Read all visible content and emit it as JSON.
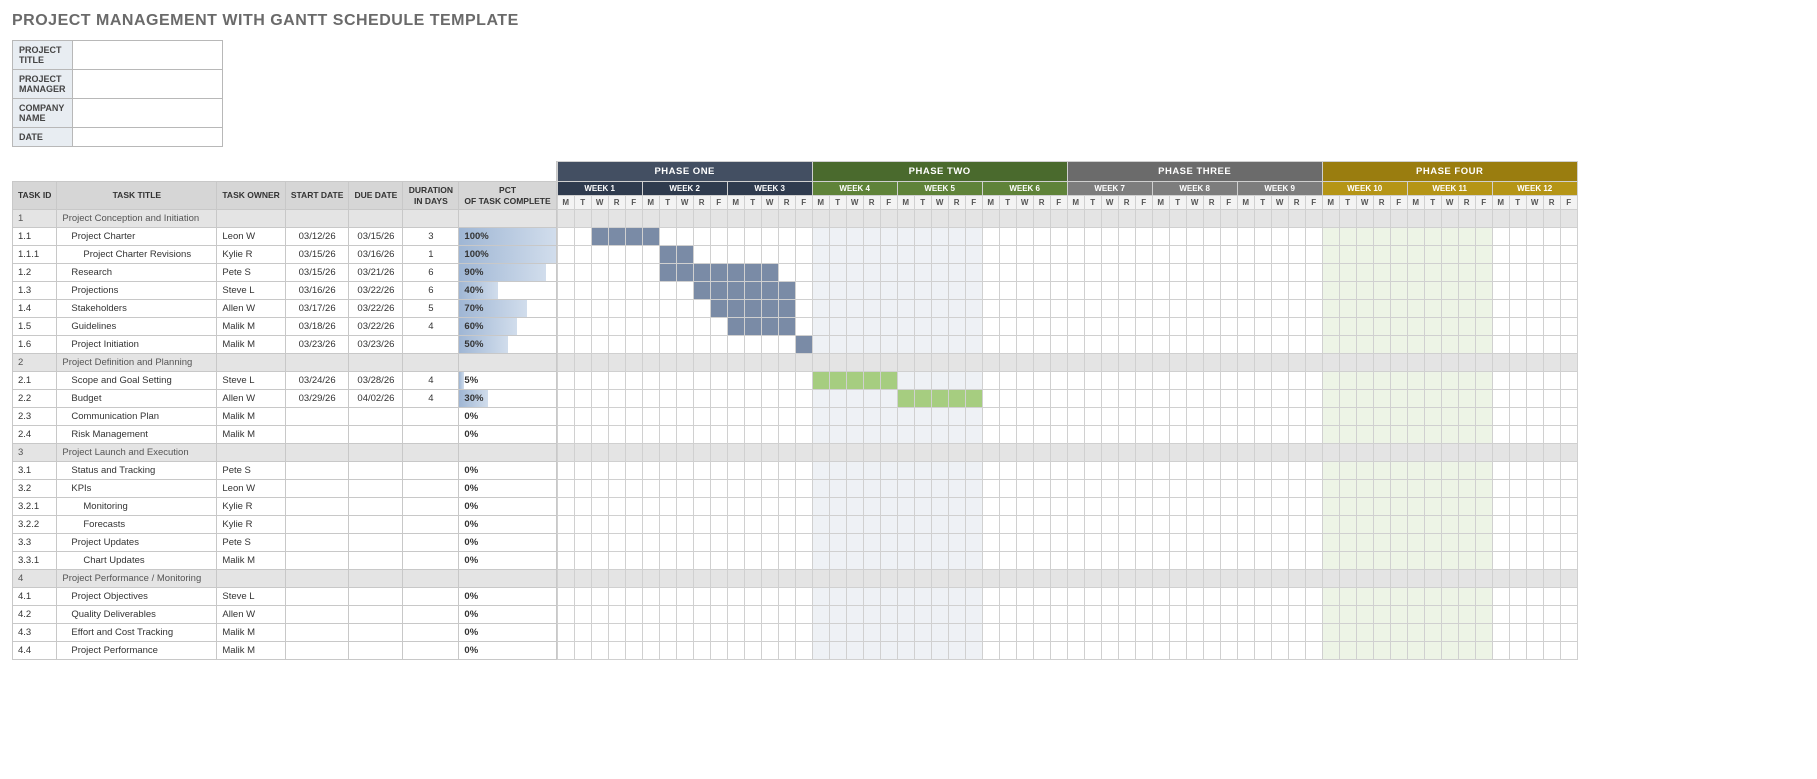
{
  "page_title": "PROJECT MANAGEMENT WITH GANTT SCHEDULE TEMPLATE",
  "meta": {
    "labels": {
      "title": "PROJECT TITLE",
      "manager": "PROJECT MANAGER",
      "company": "COMPANY NAME",
      "date": "DATE"
    },
    "values": {
      "title": "",
      "manager": "",
      "company": "",
      "date": ""
    }
  },
  "columns": {
    "id": "TASK ID",
    "title": "TASK TITLE",
    "owner": "TASK OWNER",
    "start": "START DATE",
    "due": "DUE DATE",
    "dur": "DURATION IN DAYS",
    "pct": "PCT OF TASK COMPLETE"
  },
  "day_letters": [
    "M",
    "T",
    "W",
    "R",
    "F"
  ],
  "phases": [
    {
      "name": "PHASE ONE",
      "bg": "#434f62",
      "wbg": "#2f3b4e",
      "weeks": [
        "WEEK 1",
        "WEEK 2",
        "WEEK 3"
      ]
    },
    {
      "name": "PHASE TWO",
      "bg": "#4a6a2d",
      "wbg": "#5f8339",
      "weeks": [
        "WEEK 4",
        "WEEK 5",
        "WEEK 6"
      ]
    },
    {
      "name": "PHASE THREE",
      "bg": "#6b6b6b",
      "wbg": "#7d7d7d",
      "weeks": [
        "WEEK 7",
        "WEEK 8",
        "WEEK 9"
      ]
    },
    {
      "name": "PHASE FOUR",
      "bg": "#9a7d0f",
      "wbg": "#b59516",
      "weeks": [
        "WEEK 10",
        "WEEK 11",
        "WEEK 12"
      ]
    }
  ],
  "shade_weeks": {
    "3": "shade-p1",
    "4": "shade-p1",
    "9": "shade-p2",
    "10": "shade-p2",
    "21": "shade-p4",
    "22": "shade-p4"
  },
  "tasks": [
    {
      "id": "1",
      "title": "Project Conception and Initiation",
      "group": true
    },
    {
      "id": "1.1",
      "title": "Project Charter",
      "indent": 1,
      "owner": "Leon W",
      "start": "03/12/26",
      "due": "03/15/26",
      "dur": "3",
      "pct": 100,
      "bar_start": 2,
      "bar_len": 4,
      "bar_color": "bar1"
    },
    {
      "id": "1.1.1",
      "title": "Project Charter Revisions",
      "indent": 2,
      "owner": "Kylie R",
      "start": "03/15/26",
      "due": "03/16/26",
      "dur": "1",
      "pct": 100,
      "bar_start": 6,
      "bar_len": 2,
      "bar_color": "bar1"
    },
    {
      "id": "1.2",
      "title": "Research",
      "indent": 1,
      "owner": "Pete S",
      "start": "03/15/26",
      "due": "03/21/26",
      "dur": "6",
      "pct": 90,
      "bar_start": 6,
      "bar_len": 7,
      "bar_color": "bar1"
    },
    {
      "id": "1.3",
      "title": "Projections",
      "indent": 1,
      "owner": "Steve L",
      "start": "03/16/26",
      "due": "03/22/26",
      "dur": "6",
      "pct": 40,
      "bar_start": 8,
      "bar_len": 6,
      "bar_color": "bar1"
    },
    {
      "id": "1.4",
      "title": "Stakeholders",
      "indent": 1,
      "owner": "Allen W",
      "start": "03/17/26",
      "due": "03/22/26",
      "dur": "5",
      "pct": 70,
      "bar_start": 9,
      "bar_len": 5,
      "bar_color": "bar1"
    },
    {
      "id": "1.5",
      "title": "Guidelines",
      "indent": 1,
      "owner": "Malik M",
      "start": "03/18/26",
      "due": "03/22/26",
      "dur": "4",
      "pct": 60,
      "bar_start": 10,
      "bar_len": 4,
      "bar_color": "bar1"
    },
    {
      "id": "1.6",
      "title": "Project Initiation",
      "indent": 1,
      "owner": "Malik M",
      "start": "03/23/26",
      "due": "03/23/26",
      "dur": "",
      "pct": 50,
      "bar_start": 14,
      "bar_len": 1,
      "bar_color": "bar1"
    },
    {
      "id": "2",
      "title": "Project Definition and Planning",
      "group": true
    },
    {
      "id": "2.1",
      "title": "Scope and Goal Setting",
      "indent": 1,
      "owner": "Steve L",
      "start": "03/24/26",
      "due": "03/28/26",
      "dur": "4",
      "pct": 5,
      "bar_start": 15,
      "bar_len": 5,
      "bar_color": "bar2"
    },
    {
      "id": "2.2",
      "title": "Budget",
      "indent": 1,
      "owner": "Allen W",
      "start": "03/29/26",
      "due": "04/02/26",
      "dur": "4",
      "pct": 30,
      "bar_start": 20,
      "bar_len": 5,
      "bar_color": "bar2"
    },
    {
      "id": "2.3",
      "title": "Communication Plan",
      "indent": 1,
      "owner": "Malik M",
      "start": "",
      "due": "",
      "dur": "",
      "pct": 0
    },
    {
      "id": "2.4",
      "title": "Risk Management",
      "indent": 1,
      "owner": "Malik M",
      "start": "",
      "due": "",
      "dur": "",
      "pct": 0
    },
    {
      "id": "3",
      "title": "Project Launch and Execution",
      "group": true
    },
    {
      "id": "3.1",
      "title": "Status and Tracking",
      "indent": 1,
      "owner": "Pete S",
      "start": "",
      "due": "",
      "dur": "",
      "pct": 0
    },
    {
      "id": "3.2",
      "title": "KPIs",
      "indent": 1,
      "owner": "Leon W",
      "start": "",
      "due": "",
      "dur": "",
      "pct": 0
    },
    {
      "id": "3.2.1",
      "title": "Monitoring",
      "indent": 2,
      "owner": "Kylie R",
      "start": "",
      "due": "",
      "dur": "",
      "pct": 0
    },
    {
      "id": "3.2.2",
      "title": "Forecasts",
      "indent": 2,
      "owner": "Kylie R",
      "start": "",
      "due": "",
      "dur": "",
      "pct": 0
    },
    {
      "id": "3.3",
      "title": "Project Updates",
      "indent": 1,
      "owner": "Pete S",
      "start": "",
      "due": "",
      "dur": "",
      "pct": 0
    },
    {
      "id": "3.3.1",
      "title": "Chart Updates",
      "indent": 2,
      "owner": "Malik M",
      "start": "",
      "due": "",
      "dur": "",
      "pct": 0
    },
    {
      "id": "4",
      "title": "Project Performance / Monitoring",
      "group": true
    },
    {
      "id": "4.1",
      "title": "Project Objectives",
      "indent": 1,
      "owner": "Steve L",
      "start": "",
      "due": "",
      "dur": "",
      "pct": 0
    },
    {
      "id": "4.2",
      "title": "Quality Deliverables",
      "indent": 1,
      "owner": "Allen W",
      "start": "",
      "due": "",
      "dur": "",
      "pct": 0
    },
    {
      "id": "4.3",
      "title": "Effort and Cost Tracking",
      "indent": 1,
      "owner": "Malik M",
      "start": "",
      "due": "",
      "dur": "",
      "pct": 0
    },
    {
      "id": "4.4",
      "title": "Project Performance",
      "indent": 1,
      "owner": "Malik M",
      "start": "",
      "due": "",
      "dur": "",
      "pct": 0
    }
  ]
}
